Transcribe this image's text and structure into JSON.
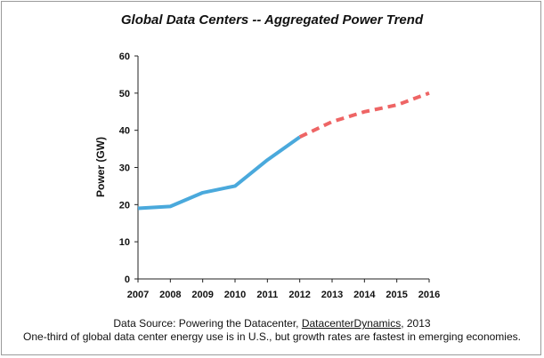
{
  "chart_data": {
    "type": "line",
    "title": "Global Data Centers -- Aggregated Power Trend",
    "xlabel": "",
    "ylabel": "Power (GW)",
    "ylim": [
      0,
      60
    ],
    "yticks": [
      0,
      10,
      20,
      30,
      40,
      50,
      60
    ],
    "categories": [
      "2007",
      "2008",
      "2009",
      "2010",
      "2011",
      "2012",
      "2013",
      "2014",
      "2015",
      "2016"
    ],
    "grid": false,
    "legend": "none",
    "series": [
      {
        "style": "solid",
        "color": "#4aa9dc",
        "x": [
          "2007",
          "2008",
          "2009",
          "2010",
          "2011",
          "2012"
        ],
        "values": [
          19,
          19.5,
          23.2,
          25,
          32,
          38.2
        ]
      },
      {
        "style": "dashed",
        "color": "#ee6565",
        "x": [
          "2012",
          "2013",
          "2014",
          "2015",
          "2016"
        ],
        "values": [
          38.2,
          42.3,
          45,
          46.8,
          50
        ]
      }
    ]
  },
  "footer": {
    "source_prefix": "Data Source: Powering the Datacenter, ",
    "source_link": "DatacenterDynamics",
    "source_suffix": ", 2013",
    "note": "One-third of global data center energy use is in U.S., but growth rates are fastest in emerging economies."
  }
}
